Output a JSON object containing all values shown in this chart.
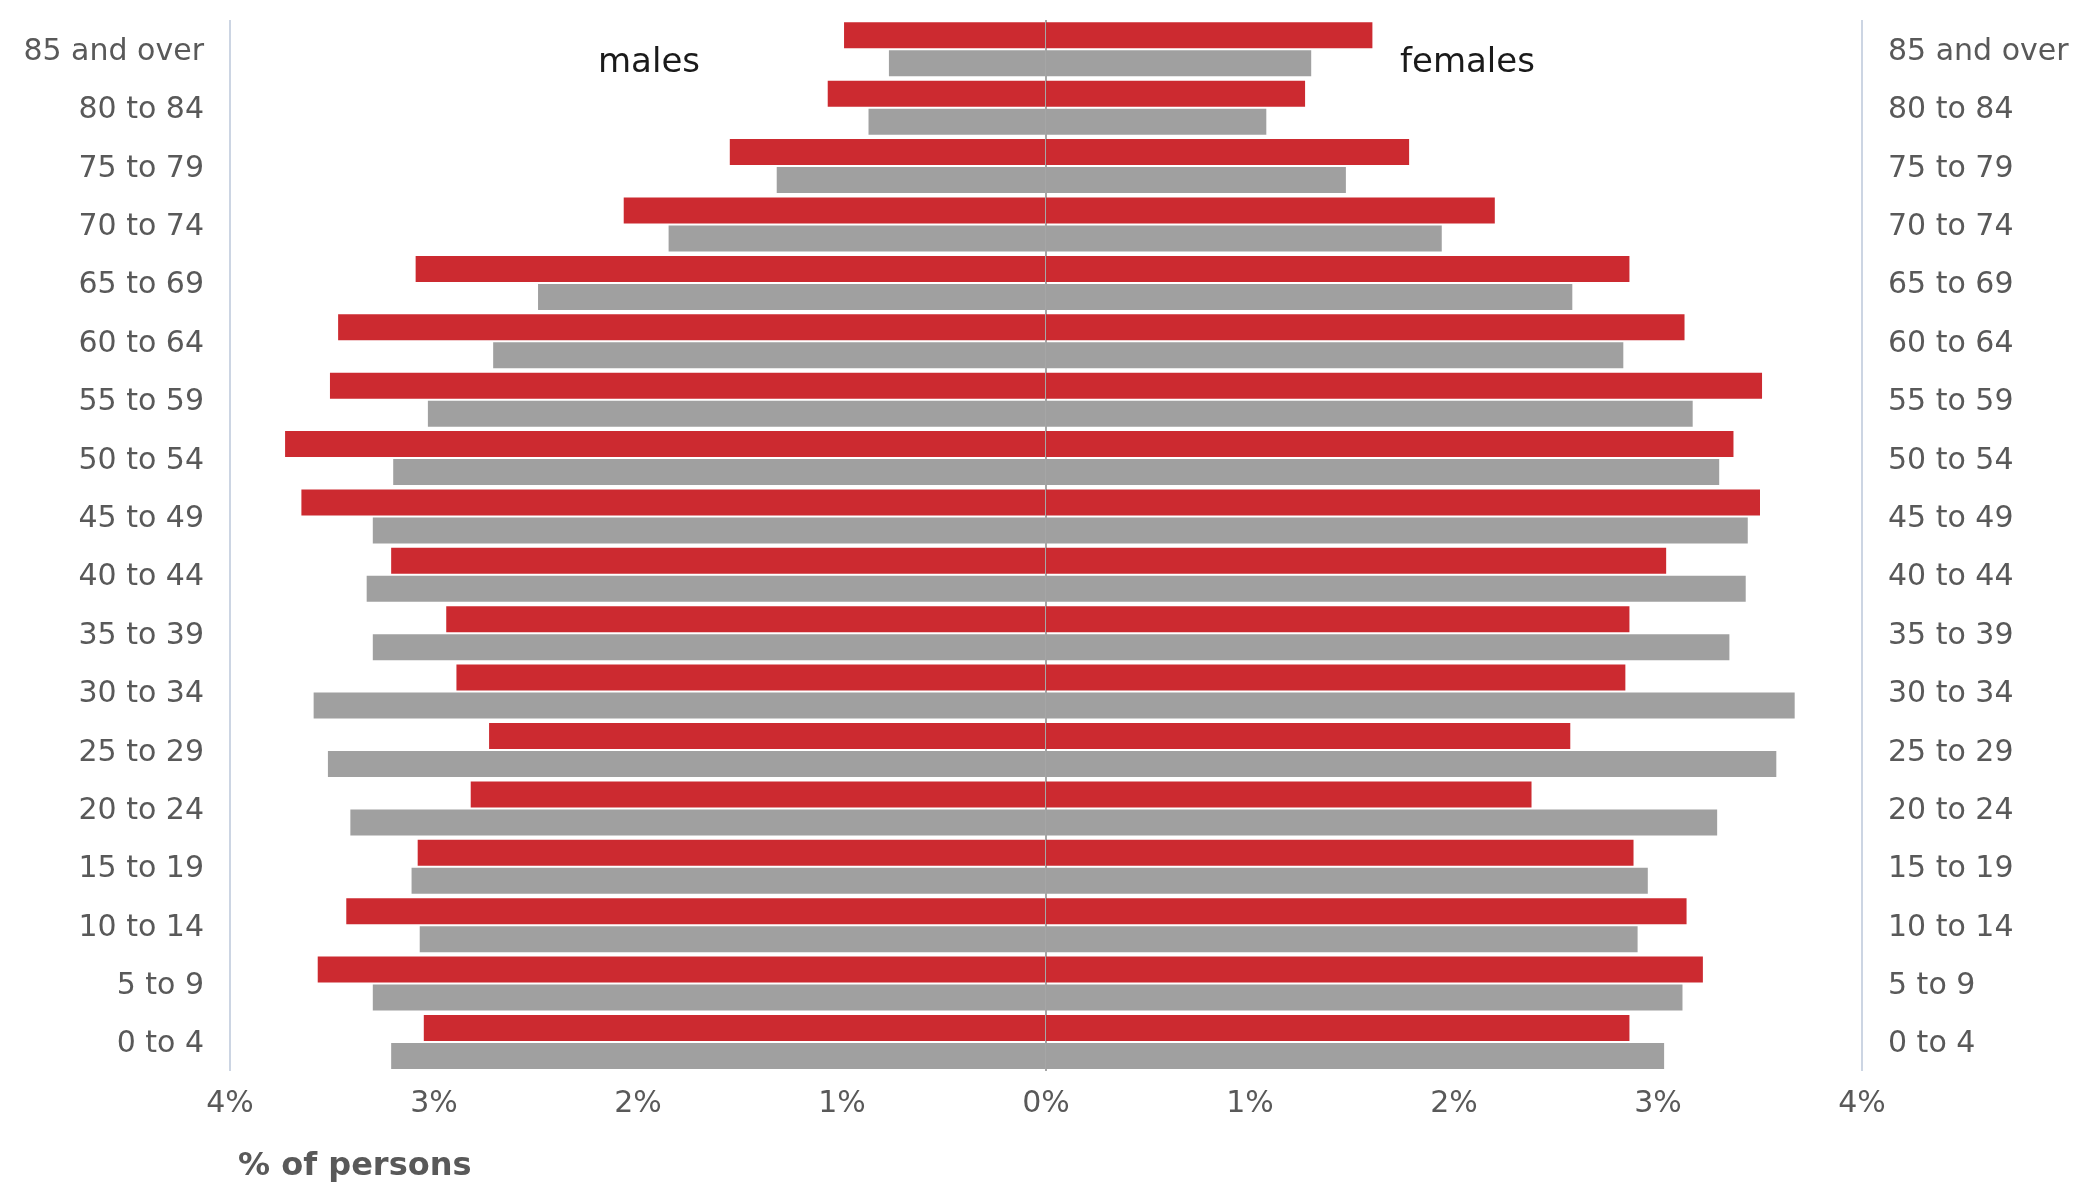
{
  "chart_data": [
    {
      "type": "bar",
      "orientation": "horizontal",
      "categories": [
        "85 and over",
        "80 to 84",
        "75 to 79",
        "70 to 74",
        "65 to 69",
        "60 to 64",
        "55 to 59",
        "50 to 54",
        "45 to 49",
        "40 to 44",
        "35 to 39",
        "30 to 34",
        "25 to 29",
        "20 to 24",
        "15 to 19",
        "10 to 14",
        "5 to 9",
        "0 to 4"
      ],
      "series": [
        {
          "color": "#cc2a30",
          "values": [
            0.99,
            1.07,
            1.55,
            2.07,
            3.09,
            3.47,
            3.51,
            3.73,
            3.65,
            3.21,
            2.94,
            2.89,
            2.73,
            2.82,
            3.08,
            3.43,
            3.57,
            3.05
          ]
        },
        {
          "color": "#a0a0a0",
          "values": [
            0.77,
            0.87,
            1.32,
            1.85,
            2.49,
            2.71,
            3.03,
            3.2,
            3.3,
            3.33,
            3.3,
            3.59,
            3.52,
            3.41,
            3.11,
            3.07,
            3.3,
            3.21
          ]
        }
      ],
      "xlim": [
        4,
        0
      ],
      "xticks": [
        {
          "value": 4,
          "label": "4%"
        },
        {
          "value": 3,
          "label": "3%"
        },
        {
          "value": 2,
          "label": "2%"
        },
        {
          "value": 1,
          "label": "1%"
        },
        {
          "value": 0,
          "label": "0%"
        }
      ],
      "xlabel": "% of persons",
      "annotations": [
        "males"
      ],
      "ref_lines": [
        {
          "axis": "x",
          "value": 0,
          "color": "#a6a6a6"
        }
      ],
      "grid": false,
      "legend": false
    },
    {
      "type": "bar",
      "orientation": "horizontal",
      "categories": [
        "85 and over",
        "80 to 84",
        "75 to 79",
        "70 to 74",
        "65 to 69",
        "60 to 64",
        "55 to 59",
        "50 to 54",
        "45 to 49",
        "40 to 44",
        "35 to 39",
        "30 to 34",
        "25 to 29",
        "20 to 24",
        "15 to 19",
        "10 to 14",
        "5 to 9",
        "0 to 4"
      ],
      "series": [
        {
          "color": "#cc2a30",
          "values": [
            1.6,
            1.27,
            1.78,
            2.2,
            2.86,
            3.13,
            3.51,
            3.37,
            3.5,
            3.04,
            2.86,
            2.84,
            2.57,
            2.38,
            2.88,
            3.14,
            3.22,
            2.86
          ]
        },
        {
          "color": "#a0a0a0",
          "values": [
            1.3,
            1.08,
            1.47,
            1.94,
            2.58,
            2.83,
            3.17,
            3.3,
            3.44,
            3.43,
            3.35,
            3.67,
            3.58,
            3.29,
            2.95,
            2.9,
            3.12,
            3.03
          ]
        }
      ],
      "xlim": [
        0,
        4
      ],
      "xticks": [
        {
          "value": 1,
          "label": "1%"
        },
        {
          "value": 2,
          "label": "2%"
        },
        {
          "value": 3,
          "label": "3%"
        },
        {
          "value": 4,
          "label": "4%"
        }
      ],
      "annotations": [
        "females"
      ],
      "grid": false,
      "legend": false
    }
  ]
}
